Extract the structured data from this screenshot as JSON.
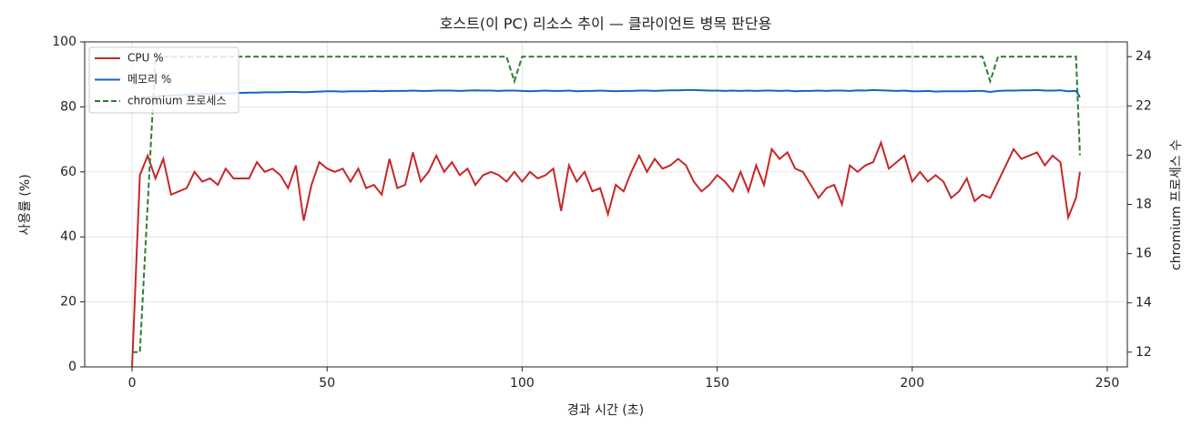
{
  "chart_data": {
    "type": "line",
    "title": "호스트(이 PC) 리소스 추이 — 클라이언트 병목 판단용",
    "x_label": "경과 시간 (초)",
    "y_label": "사용률 (%)",
    "y2_label": "chromium 프로세스 수",
    "xlim": [
      -12.15,
      255.15
    ],
    "xticks": [
      0,
      50,
      100,
      150,
      200,
      250
    ],
    "ylim": [
      0,
      100
    ],
    "yticks": [
      0,
      20,
      40,
      60,
      80,
      100
    ],
    "y2lim": [
      11.4,
      24.6
    ],
    "y2ticks": [
      12,
      14,
      16,
      18,
      20,
      22,
      24
    ],
    "grid": true,
    "legend": "upper-left",
    "x": [
      0,
      2,
      4,
      6,
      8,
      10,
      12,
      14,
      16,
      18,
      20,
      22,
      24,
      26,
      28,
      30,
      32,
      34,
      36,
      38,
      40,
      42,
      44,
      46,
      48,
      50,
      52,
      54,
      56,
      58,
      60,
      62,
      64,
      66,
      68,
      70,
      72,
      74,
      76,
      78,
      80,
      82,
      84,
      86,
      88,
      90,
      92,
      94,
      96,
      98,
      100,
      102,
      104,
      106,
      108,
      110,
      112,
      114,
      116,
      118,
      120,
      122,
      124,
      126,
      128,
      130,
      132,
      134,
      136,
      138,
      140,
      142,
      144,
      146,
      148,
      150,
      152,
      154,
      156,
      158,
      160,
      162,
      164,
      166,
      168,
      170,
      172,
      174,
      176,
      178,
      180,
      182,
      184,
      186,
      188,
      190,
      192,
      194,
      196,
      198,
      200,
      202,
      204,
      206,
      208,
      210,
      212,
      214,
      216,
      218,
      220,
      222,
      224,
      226,
      228,
      230,
      232,
      234,
      236,
      238,
      240,
      242,
      243
    ],
    "series": [
      {
        "name": "CPU %",
        "color": "#c62828",
        "dash": false,
        "values": [
          0,
          59,
          65,
          58,
          64,
          53,
          54,
          55,
          60,
          57,
          58,
          56,
          61,
          58,
          58,
          58,
          63,
          60,
          61,
          59,
          55,
          62,
          45,
          56,
          63,
          61,
          60,
          61,
          57,
          61,
          55,
          56,
          53,
          64,
          55,
          56,
          66,
          57,
          60,
          65,
          60,
          63,
          59,
          61,
          56,
          59,
          60,
          59,
          57,
          60,
          57,
          60,
          58,
          59,
          61,
          48,
          62,
          57,
          60,
          54,
          55,
          47,
          56,
          54,
          60,
          65,
          60,
          64,
          61,
          62,
          64,
          62,
          57,
          54,
          56,
          59,
          57,
          54,
          60,
          54,
          62,
          56,
          67,
          64,
          66,
          61,
          60,
          56,
          52,
          55,
          56,
          50,
          62,
          60,
          62,
          63,
          69,
          61,
          63,
          65,
          57,
          60,
          57,
          59,
          57,
          52,
          54,
          58,
          51,
          53,
          52,
          57,
          62,
          67,
          64,
          65,
          66,
          62,
          65,
          63,
          46,
          52,
          60
        ]
      },
      {
        "name": "메모리 %",
        "color": "#1565c0",
        "dash": false,
        "values": [
          82.5,
          82.8,
          83.0,
          83.2,
          83.4,
          83.5,
          83.6,
          83.8,
          83.9,
          84.0,
          84.0,
          84.1,
          84.1,
          84.2,
          84.3,
          84.4,
          84.4,
          84.5,
          84.5,
          84.5,
          84.6,
          84.6,
          84.5,
          84.6,
          84.7,
          84.8,
          84.8,
          84.7,
          84.8,
          84.8,
          84.8,
          84.9,
          84.8,
          84.9,
          84.9,
          84.9,
          85.0,
          84.9,
          84.9,
          85.0,
          85.0,
          85.0,
          84.9,
          85.0,
          85.1,
          85.0,
          85.0,
          84.9,
          85.0,
          85.0,
          84.9,
          84.8,
          84.9,
          85.0,
          84.9,
          84.9,
          85.0,
          84.8,
          84.9,
          84.9,
          85.0,
          84.9,
          84.8,
          84.9,
          84.9,
          85.0,
          85.0,
          84.9,
          85.0,
          85.1,
          85.1,
          85.2,
          85.2,
          85.1,
          85.0,
          85.0,
          84.9,
          85.0,
          84.9,
          85.0,
          84.9,
          85.0,
          85.0,
          84.9,
          85.0,
          84.8,
          84.9,
          84.9,
          85.0,
          84.9,
          85.0,
          85.0,
          84.9,
          85.1,
          85.0,
          85.2,
          85.1,
          85.0,
          84.9,
          85.0,
          84.8,
          84.8,
          84.9,
          84.7,
          84.8,
          84.8,
          84.8,
          84.8,
          84.9,
          84.9,
          84.6,
          84.9,
          85.0,
          85.0,
          85.1,
          85.1,
          85.2,
          85.0,
          85.0,
          85.1,
          84.8,
          84.9,
          83.0
        ]
      },
      {
        "name": "chromium 프로세스",
        "color": "#2e7d32",
        "dash": true,
        "axis": "y2",
        "values": [
          12,
          12,
          18,
          24,
          24,
          24,
          24,
          24,
          24,
          24,
          24,
          24,
          24,
          24,
          24,
          24,
          24,
          24,
          24,
          24,
          24,
          24,
          24,
          24,
          24,
          24,
          24,
          24,
          24,
          24,
          24,
          24,
          24,
          24,
          24,
          24,
          24,
          24,
          24,
          24,
          24,
          24,
          24,
          24,
          24,
          24,
          24,
          24,
          24,
          23,
          24,
          24,
          24,
          24,
          24,
          24,
          24,
          24,
          24,
          24,
          24,
          24,
          24,
          24,
          24,
          24,
          24,
          24,
          24,
          24,
          24,
          24,
          24,
          24,
          24,
          24,
          24,
          24,
          24,
          24,
          24,
          24,
          24,
          24,
          24,
          24,
          24,
          24,
          24,
          24,
          24,
          24,
          24,
          24,
          24,
          24,
          24,
          24,
          24,
          24,
          24,
          24,
          24,
          24,
          24,
          24,
          24,
          24,
          24,
          24,
          23,
          24,
          24,
          24,
          24,
          24,
          24,
          24,
          24,
          24,
          24,
          24,
          20
        ]
      }
    ]
  }
}
